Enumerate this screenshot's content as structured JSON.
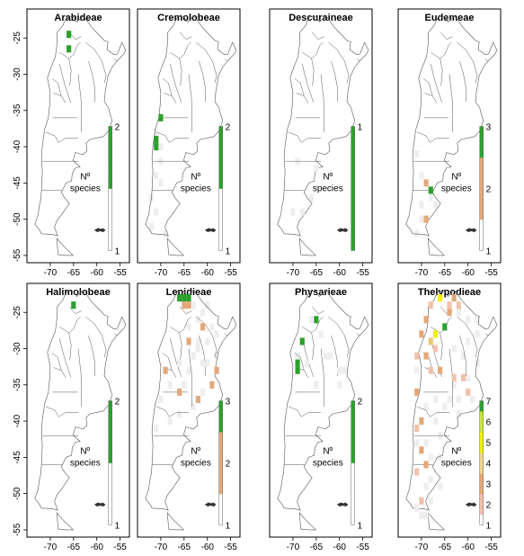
{
  "figure": {
    "legend_title_line1": "Nº",
    "legend_title_line2": "species",
    "colors": {
      "gray": "#eeeeee",
      "green": "#2ca02c",
      "salmon": "#f1c1ad",
      "tan": "#e3a87a",
      "yellow": "#f0f000",
      "outline": "#555555"
    }
  },
  "chart_data": [
    {
      "type": "heatmap",
      "title": "Arabideae",
      "x_ticks": [
        -70,
        -65,
        -60,
        -55
      ],
      "y_ticks": [
        -25,
        -30,
        -35,
        -40,
        -45,
        -50,
        -55
      ],
      "xlim": [
        -75,
        -53
      ],
      "ylim": [
        -56,
        -21
      ],
      "legend": {
        "min": 1,
        "max": 2,
        "ticks": [
          1,
          2
        ]
      },
      "cells": [
        {
          "lon": -66,
          "lat": -24.5,
          "n": 2
        },
        {
          "lon": -66,
          "lat": -26.5,
          "n": 2
        }
      ]
    },
    {
      "type": "heatmap",
      "title": "Cremolobeae",
      "x_ticks": [
        -70,
        -65,
        -60,
        -55
      ],
      "y_ticks": [
        -25,
        -30,
        -35,
        -40,
        -45,
        -50,
        -55
      ],
      "xlim": [
        -75,
        -53
      ],
      "ylim": [
        -56,
        -21
      ],
      "legend": {
        "min": 1,
        "max": 2,
        "ticks": [
          1,
          2
        ]
      },
      "cells": [
        {
          "lon": -70,
          "lat": -36,
          "n": 2
        },
        {
          "lon": -71,
          "lat": -39,
          "n": 2
        },
        {
          "lon": -71,
          "lat": -40,
          "n": 2
        }
      ]
    },
    {
      "type": "heatmap",
      "title": "Descuraineae",
      "x_ticks": [
        -70,
        -65,
        -60,
        -55
      ],
      "y_ticks": [
        -25,
        -30,
        -35,
        -40,
        -45,
        -50,
        -55
      ],
      "xlim": [
        -75,
        -53
      ],
      "ylim": [
        -56,
        -21
      ],
      "legend": {
        "min": 1,
        "max": 1,
        "ticks": [
          1
        ]
      },
      "cells": [
        {
          "lon": -65,
          "lat": -43,
          "n": 1
        },
        {
          "lon": -68,
          "lat": -49,
          "n": 1
        }
      ]
    },
    {
      "type": "heatmap",
      "title": "Eudemeae",
      "x_ticks": [
        -70,
        -65,
        -60,
        -55
      ],
      "y_ticks": [
        -25,
        -30,
        -35,
        -40,
        -45,
        -50,
        -55
      ],
      "xlim": [
        -75,
        -53
      ],
      "ylim": [
        -56,
        -21
      ],
      "legend": {
        "min": 1,
        "max": 3,
        "ticks": [
          1,
          2,
          3
        ]
      },
      "cells": [
        {
          "lon": -69,
          "lat": -45,
          "n": 2
        },
        {
          "lon": -68,
          "lat": -46,
          "n": 3
        },
        {
          "lon": -69,
          "lat": -50,
          "n": 2
        }
      ]
    },
    {
      "type": "heatmap",
      "title": "Halimolobeae",
      "x_ticks": [
        -70,
        -65,
        -60,
        -55
      ],
      "y_ticks": [
        -25,
        -30,
        -35,
        -40,
        -45,
        -50,
        -55
      ],
      "xlim": [
        -75,
        -53
      ],
      "ylim": [
        -56,
        -21
      ],
      "legend": {
        "min": 1,
        "max": 2,
        "ticks": [
          1,
          2
        ]
      },
      "cells": [
        {
          "lon": -65,
          "lat": -24,
          "n": 2
        }
      ]
    },
    {
      "type": "heatmap",
      "title": "Lepidieae",
      "x_ticks": [
        -70,
        -65,
        -60,
        -55
      ],
      "y_ticks": [
        -25,
        -30,
        -35,
        -40,
        -45,
        -50,
        -55
      ],
      "xlim": [
        -75,
        -53
      ],
      "ylim": [
        -56,
        -21
      ],
      "legend": {
        "min": 1,
        "max": 3,
        "ticks": [
          1,
          2,
          3
        ]
      },
      "cells": [
        {
          "lon": -66,
          "lat": -23,
          "n": 3
        },
        {
          "lon": -65,
          "lat": -23,
          "n": 3
        },
        {
          "lon": -64,
          "lat": -23,
          "n": 3
        },
        {
          "lon": -65,
          "lat": -24,
          "n": 2
        },
        {
          "lon": -64,
          "lat": -24,
          "n": 2
        },
        {
          "lon": -61,
          "lat": -27,
          "n": 2
        },
        {
          "lon": -64,
          "lat": -29,
          "n": 2
        },
        {
          "lon": -69,
          "lat": -33,
          "n": 2
        },
        {
          "lon": -58,
          "lat": -33,
          "n": 2
        },
        {
          "lon": -59,
          "lat": -35,
          "n": 2
        },
        {
          "lon": -66,
          "lat": -36,
          "n": 2
        },
        {
          "lon": -62,
          "lat": -37,
          "n": 2
        },
        {
          "lon": -63,
          "lat": -24,
          "n": 1
        },
        {
          "lon": -61,
          "lat": -25,
          "n": 1
        },
        {
          "lon": -59,
          "lat": -27,
          "n": 1
        },
        {
          "lon": -62,
          "lat": -30,
          "n": 1
        },
        {
          "lon": -66,
          "lat": -32,
          "n": 1
        },
        {
          "lon": -60,
          "lat": -32,
          "n": 1
        },
        {
          "lon": -61,
          "lat": -36,
          "n": 1
        },
        {
          "lon": -71,
          "lat": -41,
          "n": 1
        }
      ]
    },
    {
      "type": "heatmap",
      "title": "Physarieae",
      "x_ticks": [
        -70,
        -65,
        -60,
        -55
      ],
      "y_ticks": [
        -25,
        -30,
        -35,
        -40,
        -45,
        -50,
        -55
      ],
      "xlim": [
        -75,
        -53
      ],
      "ylim": [
        -56,
        -21
      ],
      "legend": {
        "min": 1,
        "max": 2,
        "ticks": [
          1,
          2
        ]
      },
      "cells": [
        {
          "lon": -65,
          "lat": -26,
          "n": 2
        },
        {
          "lon": -68,
          "lat": -29,
          "n": 2
        },
        {
          "lon": -69,
          "lat": -32,
          "n": 2
        },
        {
          "lon": -69,
          "lat": -33,
          "n": 2
        },
        {
          "lon": -66,
          "lat": -26,
          "n": 1
        },
        {
          "lon": -67,
          "lat": -32,
          "n": 1
        },
        {
          "lon": -62,
          "lat": -31,
          "n": 1
        },
        {
          "lon": -60,
          "lat": -33,
          "n": 1
        }
      ]
    },
    {
      "type": "heatmap",
      "title": "Thelypodieae",
      "x_ticks": [
        -70,
        -65,
        -60,
        -55
      ],
      "y_ticks": [
        -25,
        -30,
        -35,
        -40,
        -45,
        -50,
        -55
      ],
      "xlim": [
        -75,
        -53
      ],
      "ylim": [
        -56,
        -21
      ],
      "legend": {
        "min": 1,
        "max": 7,
        "ticks": [
          1,
          2,
          3,
          4,
          5,
          6,
          7
        ]
      },
      "cells": [
        {
          "lon": -66,
          "lat": -23,
          "n": 6
        },
        {
          "lon": -65,
          "lat": -27,
          "n": 7
        },
        {
          "lon": -67,
          "lat": -28,
          "n": 5
        },
        {
          "lon": -68,
          "lat": -29,
          "n": 4
        },
        {
          "lon": -69,
          "lat": -26,
          "n": 3
        },
        {
          "lon": -70,
          "lat": -28,
          "n": 3
        },
        {
          "lon": -69,
          "lat": -31,
          "n": 3
        },
        {
          "lon": -66,
          "lat": -33,
          "n": 3
        },
        {
          "lon": -63,
          "lat": -23,
          "n": 3
        },
        {
          "lon": -64,
          "lat": -25,
          "n": 3
        },
        {
          "lon": -71,
          "lat": -36,
          "n": 3
        },
        {
          "lon": -70,
          "lat": -40,
          "n": 3
        },
        {
          "lon": -70,
          "lat": -44,
          "n": 3
        },
        {
          "lon": -69,
          "lat": -46,
          "n": 3
        },
        {
          "lon": -68,
          "lat": -24,
          "n": 2
        },
        {
          "lon": -64,
          "lat": -24,
          "n": 2
        },
        {
          "lon": -62,
          "lat": -24,
          "n": 2
        },
        {
          "lon": -71,
          "lat": -31,
          "n": 2
        },
        {
          "lon": -68,
          "lat": -33,
          "n": 2
        },
        {
          "lon": -63,
          "lat": -34,
          "n": 2
        },
        {
          "lon": -61,
          "lat": -34,
          "n": 2
        },
        {
          "lon": -60,
          "lat": -36,
          "n": 2
        },
        {
          "lon": -71,
          "lat": -41,
          "n": 2
        },
        {
          "lon": -71,
          "lat": -47,
          "n": 2
        },
        {
          "lon": -70,
          "lat": -51,
          "n": 2
        },
        {
          "lon": -67,
          "lat": -30,
          "n": 2
        },
        {
          "lon": -71,
          "lat": -33,
          "n": 1
        },
        {
          "lon": -65,
          "lat": -38,
          "n": 1
        },
        {
          "lon": -62,
          "lat": -37,
          "n": 1
        },
        {
          "lon": -71,
          "lat": -43,
          "n": 1
        },
        {
          "lon": -68,
          "lat": -45,
          "n": 1
        },
        {
          "lon": -71,
          "lat": -52,
          "n": 1
        },
        {
          "lon": -69,
          "lat": -53,
          "n": 1
        }
      ]
    }
  ]
}
